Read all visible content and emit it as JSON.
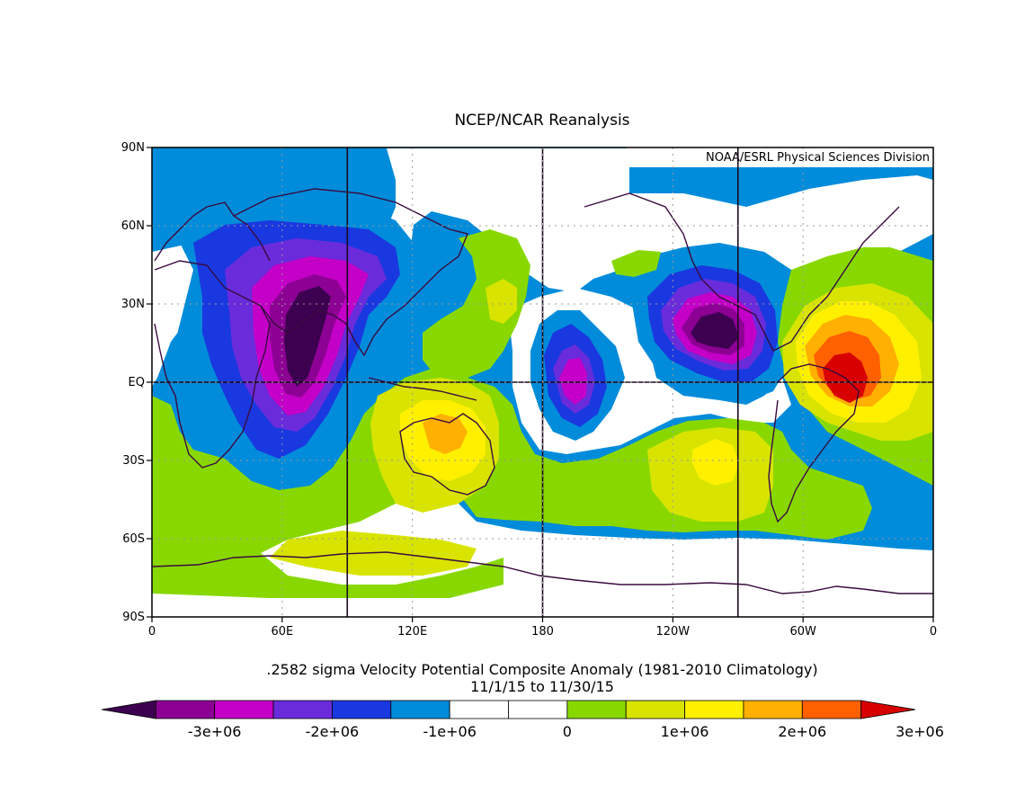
{
  "title": "NCEP/NCAR Reanalysis",
  "credit": "NOAA/ESRL Physical Sciences Division",
  "caption": {
    "line1": ".2582 sigma Velocity Potential  Composite Anomaly (1981-2010 Climatology)",
    "line2": "11/1/15  to 11/30/15"
  },
  "map": {
    "lat_ticks": [
      {
        "lat": 90,
        "label": "90N"
      },
      {
        "lat": 60,
        "label": "60N"
      },
      {
        "lat": 30,
        "label": "30N"
      },
      {
        "lat": 0,
        "label": "EQ"
      },
      {
        "lat": -30,
        "label": "30S"
      },
      {
        "lat": -60,
        "label": "60S"
      },
      {
        "lat": -90,
        "label": "90S"
      }
    ],
    "lon_ticks": [
      {
        "lon": 0,
        "label": "0"
      },
      {
        "lon": 60,
        "label": "60E"
      },
      {
        "lon": 120,
        "label": "120E"
      },
      {
        "lon": 180,
        "label": "180"
      },
      {
        "lon": 240,
        "label": "120W"
      },
      {
        "lon": 300,
        "label": "60W"
      },
      {
        "lon": 360,
        "label": "0"
      }
    ],
    "reference_lines": {
      "lons": [
        90,
        180,
        270
      ],
      "lats": [
        0
      ]
    },
    "background_color": "#008cda",
    "anomaly_features": [
      {
        "name": "indian-ocean-minimum",
        "lon": 70,
        "lat": 5,
        "peak_level": 0
      },
      {
        "name": "north-pacific-east-minimum",
        "lon": 255,
        "lat": 18,
        "peak_level": 0
      },
      {
        "name": "central-pacific-minimum",
        "lon": 188,
        "lat": -5,
        "peak_level": 1
      },
      {
        "name": "south-america-maximum",
        "lon": 318,
        "lat": 2,
        "peak_level": 13
      },
      {
        "name": "australia-maximum",
        "lon": 135,
        "lat": -20,
        "peak_level": 10
      },
      {
        "name": "south-pacific-maximum",
        "lon": 245,
        "lat": -27,
        "peak_level": 10
      }
    ]
  },
  "colorbar": {
    "colors": [
      "#3d0050",
      "#8d0094",
      "#c400c8",
      "#6a2cdb",
      "#1a38e0",
      "#008cda",
      "#ffffff",
      "#ffffff",
      "#88d800",
      "#d8e400",
      "#fff000",
      "#ffb000",
      "#ff6000",
      "#d80000"
    ],
    "tick_labels": [
      {
        "index": 1,
        "label": "-3e+06"
      },
      {
        "index": 3,
        "label": "-2e+06"
      },
      {
        "index": 5,
        "label": "-1e+06"
      },
      {
        "index": 7,
        "label": "0"
      },
      {
        "index": 9,
        "label": "1e+06"
      },
      {
        "index": 11,
        "label": "2e+06"
      },
      {
        "index": 13,
        "label": "3e+06"
      }
    ]
  }
}
